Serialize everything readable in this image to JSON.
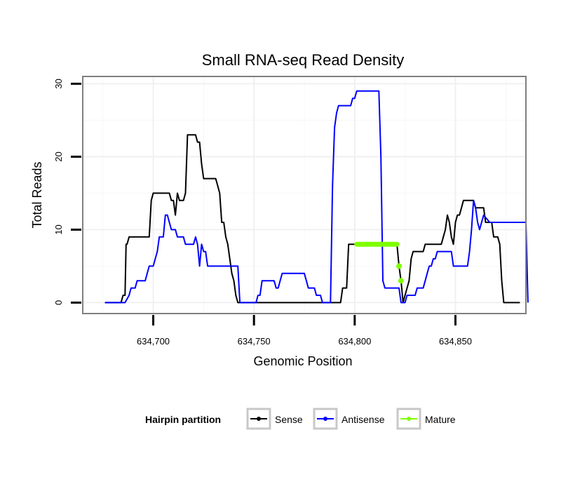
{
  "chart_data": {
    "type": "line",
    "title": "Small RNA-seq Read Density",
    "xlabel": "Genomic Position",
    "ylabel": "Total Reads",
    "xlim": [
      634665,
      634885
    ],
    "ylim": [
      -1.5,
      31
    ],
    "x_ticks": [
      634700,
      634750,
      634800,
      634850
    ],
    "x_tick_labels": [
      "634,700",
      "634,750",
      "634,800",
      "634,850"
    ],
    "y_ticks": [
      0,
      10,
      20,
      30
    ],
    "y_tick_labels": [
      "0",
      "10",
      "20",
      "30"
    ],
    "grid": true,
    "legend": {
      "title": "Hairpin partition",
      "position": "bottom",
      "entries": [
        "Sense",
        "Antisense",
        "Mature"
      ]
    },
    "series": [
      {
        "name": "Sense",
        "color": "#000000",
        "points": [
          [
            634676,
            0
          ],
          [
            634684,
            0
          ],
          [
            634685,
            1
          ],
          [
            634686,
            1
          ],
          [
            634686.5,
            8
          ],
          [
            634687,
            8
          ],
          [
            634688,
            9
          ],
          [
            634698,
            9
          ],
          [
            634699,
            14
          ],
          [
            634700,
            15
          ],
          [
            634708,
            15
          ],
          [
            634709,
            14
          ],
          [
            634710,
            14
          ],
          [
            634711,
            12
          ],
          [
            634712,
            15
          ],
          [
            634713,
            14
          ],
          [
            634715,
            14
          ],
          [
            634716,
            15
          ],
          [
            634717,
            23
          ],
          [
            634721,
            23
          ],
          [
            634722,
            22
          ],
          [
            634723,
            22
          ],
          [
            634724,
            19
          ],
          [
            634725,
            17
          ],
          [
            634731,
            17
          ],
          [
            634732,
            16
          ],
          [
            634733,
            15
          ],
          [
            634734,
            11
          ],
          [
            634735,
            11
          ],
          [
            634736,
            9
          ],
          [
            634737,
            8
          ],
          [
            634738,
            6
          ],
          [
            634739,
            4
          ],
          [
            634740,
            3
          ],
          [
            634741,
            1
          ],
          [
            634742,
            0
          ],
          [
            634793,
            0
          ],
          [
            634794,
            2
          ],
          [
            634796,
            2
          ],
          [
            634797,
            8
          ],
          [
            634821,
            8
          ],
          [
            634822,
            5
          ],
          [
            634823,
            3
          ],
          [
            634824,
            0
          ],
          [
            634825,
            1
          ],
          [
            634826,
            2
          ],
          [
            634827,
            3
          ],
          [
            634828,
            6
          ],
          [
            634829,
            7
          ],
          [
            634834,
            7
          ],
          [
            634835,
            8
          ],
          [
            634843,
            8
          ],
          [
            634844,
            9
          ],
          [
            634845,
            10
          ],
          [
            634846,
            12
          ],
          [
            634847,
            11
          ],
          [
            634848,
            9
          ],
          [
            634849,
            8
          ],
          [
            634850,
            11
          ],
          [
            634851,
            12
          ],
          [
            634852,
            12
          ],
          [
            634853,
            13
          ],
          [
            634854,
            14
          ],
          [
            634859,
            14
          ],
          [
            634860,
            13
          ],
          [
            634864,
            13
          ],
          [
            634865,
            11
          ],
          [
            634868,
            11
          ],
          [
            634869,
            9
          ],
          [
            634871,
            9
          ],
          [
            634872,
            8
          ],
          [
            634873,
            3
          ],
          [
            634874,
            0
          ],
          [
            634882,
            0
          ]
        ]
      },
      {
        "name": "Antisense",
        "color": "#0000ff",
        "points": [
          [
            634676,
            0
          ],
          [
            634686,
            0
          ],
          [
            634688,
            1
          ],
          [
            634689,
            2
          ],
          [
            634691,
            2
          ],
          [
            634692,
            3
          ],
          [
            634696,
            3
          ],
          [
            634697,
            4
          ],
          [
            634698,
            5
          ],
          [
            634700,
            5
          ],
          [
            634701,
            6
          ],
          [
            634702,
            7
          ],
          [
            634703,
            9
          ],
          [
            634705,
            9
          ],
          [
            634706,
            12
          ],
          [
            634707,
            12
          ],
          [
            634708,
            11
          ],
          [
            634709,
            10
          ],
          [
            634711,
            10
          ],
          [
            634712,
            9
          ],
          [
            634715,
            9
          ],
          [
            634716,
            8
          ],
          [
            634720,
            8
          ],
          [
            634721,
            9
          ],
          [
            634722,
            8
          ],
          [
            634723,
            5
          ],
          [
            634724,
            8
          ],
          [
            634725,
            7
          ],
          [
            634726,
            7
          ],
          [
            634727,
            5
          ],
          [
            634742,
            5
          ],
          [
            634743,
            0
          ],
          [
            634751,
            0
          ],
          [
            634752,
            1
          ],
          [
            634753,
            1
          ],
          [
            634754,
            3
          ],
          [
            634760,
            3
          ],
          [
            634761,
            2
          ],
          [
            634762,
            2
          ],
          [
            634763,
            3
          ],
          [
            634764,
            4
          ],
          [
            634775,
            4
          ],
          [
            634776,
            3
          ],
          [
            634777,
            2
          ],
          [
            634780,
            2
          ],
          [
            634781,
            1
          ],
          [
            634783,
            1
          ],
          [
            634784,
            0
          ],
          [
            634788,
            0
          ],
          [
            634789,
            16
          ],
          [
            634790,
            24
          ],
          [
            634791,
            26
          ],
          [
            634792,
            27
          ],
          [
            634798,
            27
          ],
          [
            634799,
            28
          ],
          [
            634800,
            28
          ],
          [
            634801,
            29
          ],
          [
            634812,
            29
          ],
          [
            634813,
            20
          ],
          [
            634814,
            3
          ],
          [
            634815,
            2
          ],
          [
            634822,
            2
          ],
          [
            634823,
            0
          ],
          [
            634825,
            0
          ],
          [
            634826,
            1
          ],
          [
            634830,
            1
          ],
          [
            634831,
            2
          ],
          [
            634834,
            2
          ],
          [
            634835,
            3
          ],
          [
            634836,
            4
          ],
          [
            634837,
            5
          ],
          [
            634838,
            5
          ],
          [
            634839,
            6
          ],
          [
            634840,
            6
          ],
          [
            634841,
            7
          ],
          [
            634848,
            7
          ],
          [
            634849,
            5
          ],
          [
            634856,
            5
          ],
          [
            634857,
            7
          ],
          [
            634858,
            10
          ],
          [
            634859,
            14
          ],
          [
            634860,
            13
          ],
          [
            634861,
            11
          ],
          [
            634862,
            10
          ],
          [
            634863,
            11
          ],
          [
            634864,
            12
          ],
          [
            634867,
            11
          ],
          [
            634885,
            11
          ],
          [
            634886,
            0
          ]
        ]
      },
      {
        "name": "Mature",
        "color": "#7fff00",
        "points": [
          [
            634801,
            8
          ],
          [
            634821,
            8
          ],
          [
            634822,
            5
          ],
          [
            634823,
            3
          ]
        ]
      }
    ]
  }
}
